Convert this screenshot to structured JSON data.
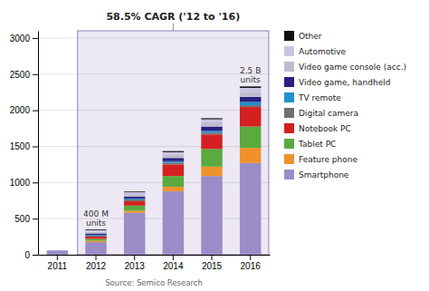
{
  "chart_data": {
    "type": "bar",
    "stacked": true,
    "title": "58.5% CAGR ('12 to '16)",
    "source": "Source: Semico Research",
    "annotations": [
      "400 M\nunits",
      "2.5 B\nunits"
    ],
    "categories": [
      "2011",
      "2012",
      "2013",
      "2014",
      "2015",
      "2016"
    ],
    "series": [
      {
        "name": "Smartphone",
        "color": "#9b8dc8",
        "values": [
          60,
          175,
          580,
          880,
          1090,
          1270
        ]
      },
      {
        "name": "Feature phone",
        "color": "#f0922b",
        "values": [
          0,
          20,
          30,
          60,
          130,
          210
        ]
      },
      {
        "name": "Tablet PC",
        "color": "#5aaa3e",
        "values": [
          0,
          25,
          70,
          150,
          245,
          295
        ]
      },
      {
        "name": "Notebook PC",
        "color": "#d42020",
        "values": [
          0,
          30,
          60,
          160,
          200,
          270
        ]
      },
      {
        "name": "Digital camera",
        "color": "#707070",
        "values": [
          0,
          15,
          25,
          25,
          25,
          25
        ]
      },
      {
        "name": "TV remote",
        "color": "#2090d0",
        "values": [
          0,
          10,
          15,
          20,
          25,
          45
        ]
      },
      {
        "name": "Video game, handheld",
        "color": "#2a2080",
        "values": [
          0,
          20,
          25,
          45,
          60,
          70
        ]
      },
      {
        "name": "Video game console (acc.)",
        "color": "#c0bcd0",
        "values": [
          0,
          25,
          35,
          50,
          60,
          70
        ]
      },
      {
        "name": "Automotive",
        "color": "#ccc4e0",
        "values": [
          0,
          20,
          25,
          30,
          40,
          55
        ]
      },
      {
        "name": "Other",
        "color": "#111111",
        "values": [
          0,
          10,
          10,
          15,
          15,
          20
        ]
      }
    ],
    "ylim": [
      0,
      3100
    ],
    "yticks": [
      0,
      500,
      1000,
      1500,
      2000,
      2500,
      3000
    ],
    "grid": true,
    "legend": "right"
  }
}
